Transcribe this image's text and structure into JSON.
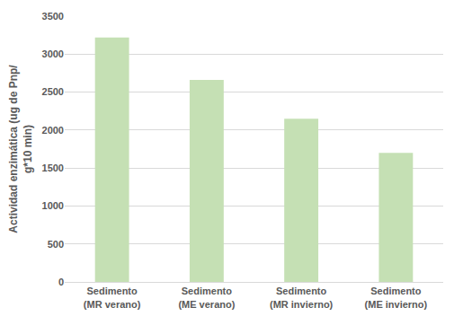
{
  "chart_data": {
    "type": "bar",
    "y_label": "Actividad enzimática (ug de Pnp/ g*10 min)",
    "categories": [
      "Sedimento (MR verano)",
      "Sedimento (ME verano)",
      "Sedimento (MR invierno)",
      "Sedimento (ME invierno)"
    ],
    "values": [
      3220,
      2660,
      2150,
      1700
    ],
    "color": "#c5e0b4",
    "ylim": [
      0,
      3500
    ],
    "yticks": [
      0,
      500,
      1000,
      1500,
      2000,
      2500,
      3000,
      3500
    ],
    "grid": true
  }
}
